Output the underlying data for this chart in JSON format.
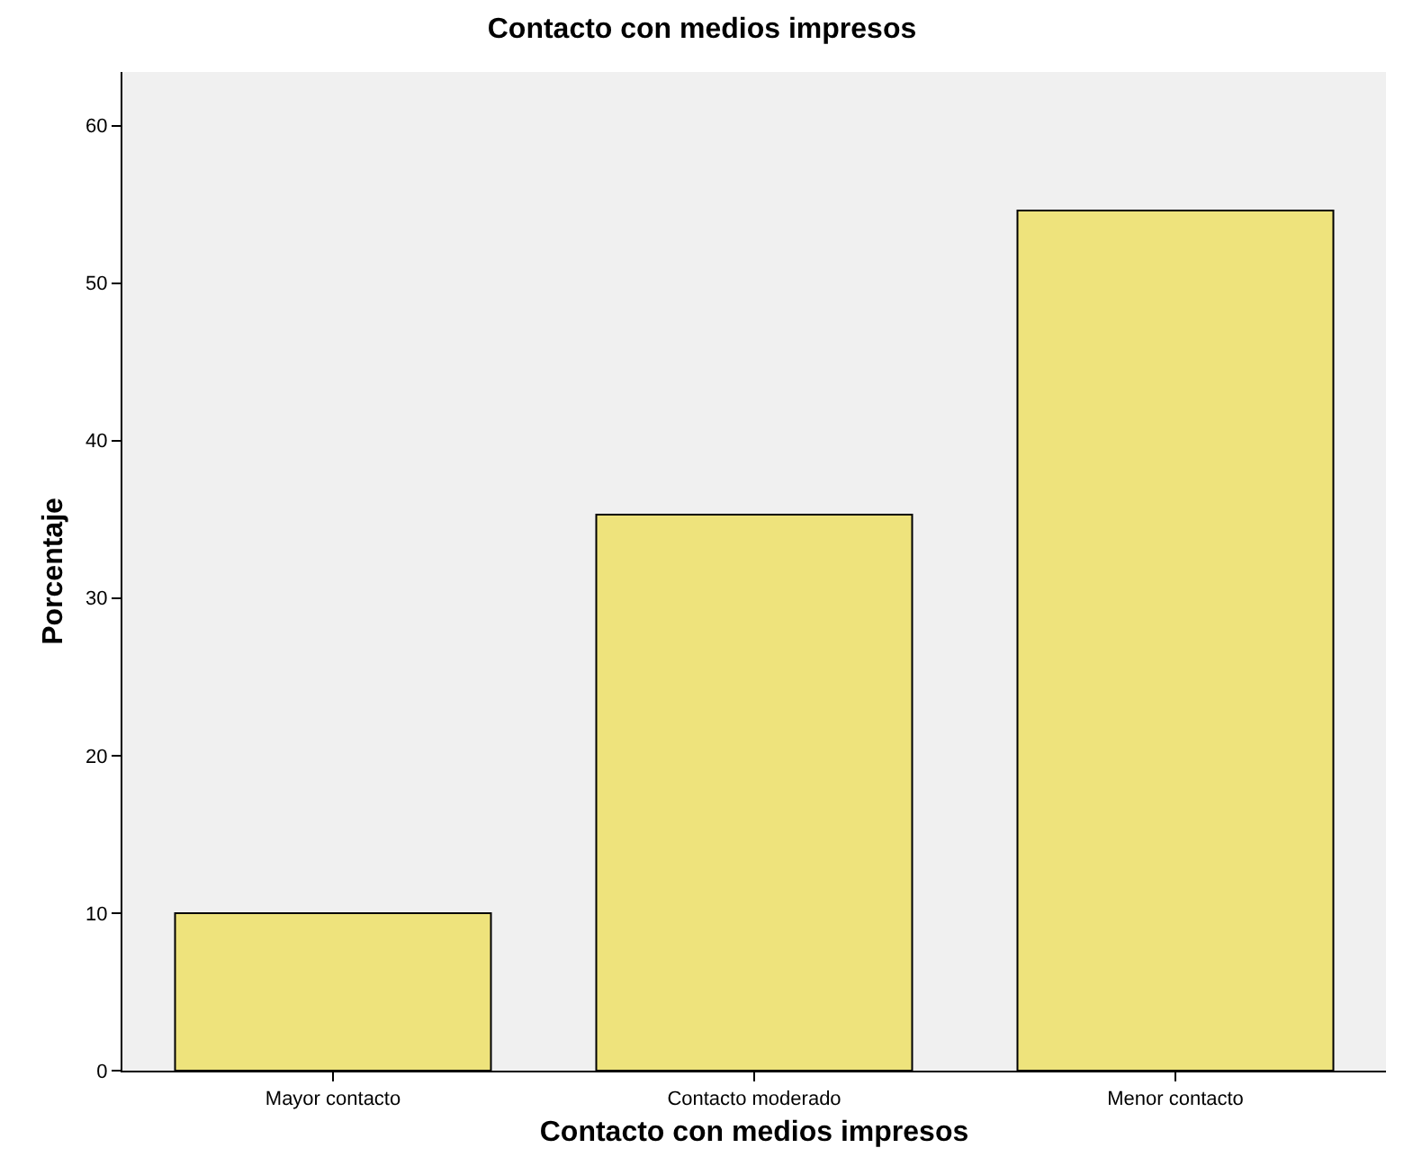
{
  "chart_data": {
    "type": "bar",
    "title": "Contacto con medios impresos",
    "xlabel": "Contacto con medios impresos",
    "ylabel": "Porcentaje",
    "categories": [
      "Mayor contacto",
      "Contacto moderado",
      "Menor contacto"
    ],
    "values": [
      10.0,
      35.3,
      54.6
    ],
    "color": "#eee37c",
    "ylim": [
      0,
      63.4
    ],
    "yticks": [
      0,
      10,
      20,
      30,
      40,
      50,
      60
    ],
    "grid": false
  }
}
